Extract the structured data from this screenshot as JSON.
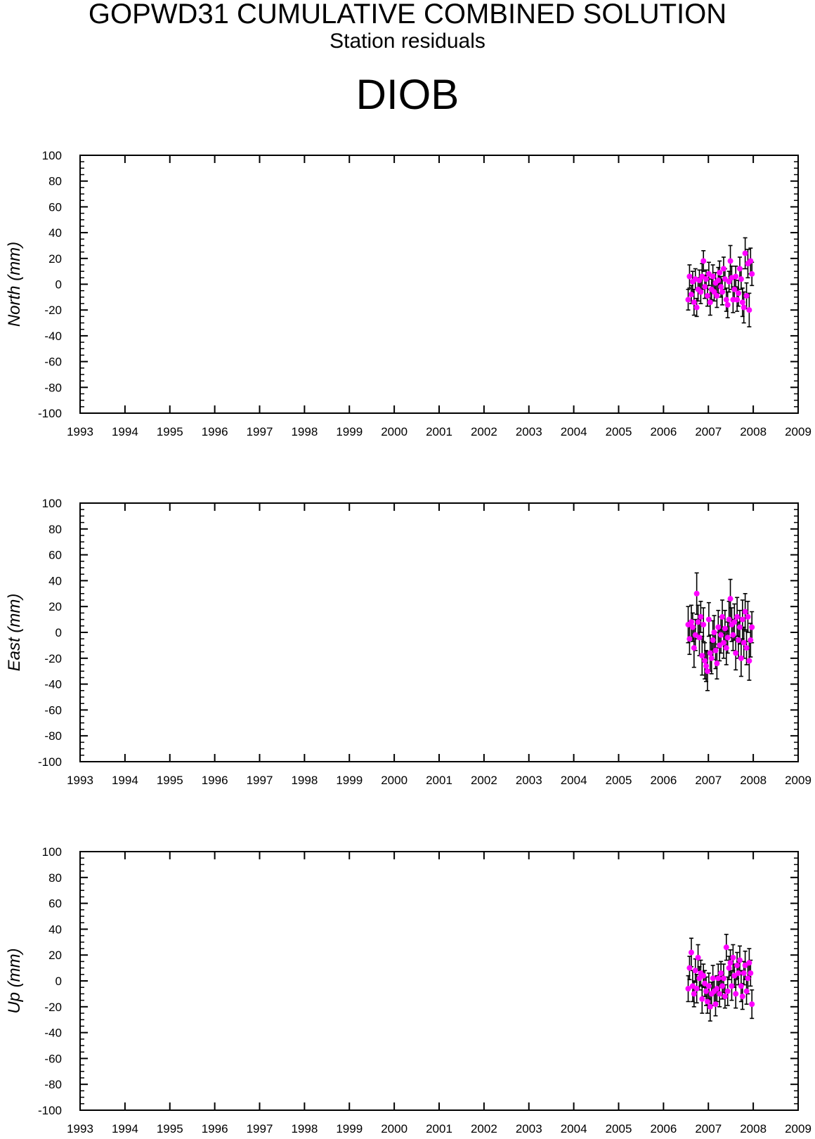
{
  "header": {
    "title": "GOPWD31 CUMULATIVE COMBINED SOLUTION",
    "subtitle": "Station residuals",
    "station": "DIOB"
  },
  "colors": {
    "marker": "#ff00ff",
    "errorbar": "#000000",
    "axis": "#000000"
  },
  "chart_data": [
    {
      "type": "scatter",
      "ylabel": "North (mm)",
      "xlim": [
        1993,
        2009
      ],
      "ylim": [
        -100,
        100
      ],
      "x_ticks": [
        "1993",
        "1994",
        "1995",
        "1996",
        "1997",
        "1998",
        "1999",
        "2000",
        "2001",
        "2002",
        "2003",
        "2004",
        "2005",
        "2006",
        "2007",
        "2008",
        "2009"
      ],
      "y_ticks": [
        "-100",
        "-80",
        "-60",
        "-40",
        "-20",
        "0",
        "20",
        "40",
        "60",
        "80",
        "100"
      ],
      "grid": false,
      "x": [
        2006.55,
        2006.58,
        2006.62,
        2006.65,
        2006.68,
        2006.71,
        2006.74,
        2006.77,
        2006.8,
        2006.83,
        2006.86,
        2006.89,
        2006.92,
        2006.95,
        2006.98,
        2007.01,
        2007.04,
        2007.07,
        2007.1,
        2007.13,
        2007.16,
        2007.19,
        2007.22,
        2007.25,
        2007.28,
        2007.31,
        2007.34,
        2007.37,
        2007.4,
        2007.43,
        2007.46,
        2007.49,
        2007.52,
        2007.55,
        2007.58,
        2007.61,
        2007.64,
        2007.67,
        2007.7,
        2007.73,
        2007.76,
        2007.79,
        2007.82,
        2007.85,
        2007.88,
        2007.91,
        2007.94,
        2007.97
      ],
      "y": [
        -12,
        6,
        -8,
        2,
        -14,
        4,
        -18,
        -4,
        3,
        -6,
        6,
        18,
        -2,
        4,
        -9,
        8,
        -14,
        -4,
        6,
        -6,
        1,
        -9,
        3,
        9,
        -2,
        -6,
        12,
        4,
        -12,
        -16,
        2,
        18,
        5,
        -12,
        -4,
        6,
        -12,
        -7,
        12,
        4,
        -14,
        -18,
        24,
        -9,
        16,
        -20,
        18,
        8
      ],
      "err": [
        8,
        9,
        7,
        8,
        10,
        8,
        7,
        9,
        8,
        9,
        10,
        8,
        9,
        7,
        8,
        9,
        10,
        8,
        9,
        7,
        8,
        9,
        10,
        9,
        8,
        10,
        9,
        8,
        9,
        10,
        8,
        12,
        9,
        10,
        9,
        8,
        9,
        10,
        9,
        8,
        11,
        12,
        12,
        10,
        11,
        13,
        10,
        9
      ]
    },
    {
      "type": "scatter",
      "ylabel": "East (mm)",
      "xlim": [
        1993,
        2009
      ],
      "ylim": [
        -100,
        100
      ],
      "x_ticks": [
        "1993",
        "1994",
        "1995",
        "1996",
        "1997",
        "1998",
        "1999",
        "2000",
        "2001",
        "2002",
        "2003",
        "2004",
        "2005",
        "2006",
        "2007",
        "2008",
        "2009"
      ],
      "y_ticks": [
        "-100",
        "-80",
        "-60",
        "-40",
        "-20",
        "0",
        "20",
        "40",
        "60",
        "80",
        "100"
      ],
      "grid": false,
      "x": [
        2006.55,
        2006.58,
        2006.62,
        2006.65,
        2006.68,
        2006.71,
        2006.74,
        2006.77,
        2006.8,
        2006.83,
        2006.86,
        2006.89,
        2006.92,
        2006.95,
        2006.98,
        2007.01,
        2007.04,
        2007.07,
        2007.1,
        2007.13,
        2007.16,
        2007.19,
        2007.22,
        2007.25,
        2007.28,
        2007.31,
        2007.34,
        2007.37,
        2007.4,
        2007.43,
        2007.46,
        2007.49,
        2007.52,
        2007.55,
        2007.58,
        2007.61,
        2007.64,
        2007.67,
        2007.7,
        2007.73,
        2007.76,
        2007.79,
        2007.82,
        2007.85,
        2007.88,
        2007.91,
        2007.94,
        2007.97
      ],
      "y": [
        6,
        -5,
        8,
        4,
        -12,
        -2,
        30,
        8,
        -4,
        12,
        -18,
        6,
        -22,
        -26,
        -30,
        10,
        -16,
        -20,
        -6,
        0,
        -14,
        -24,
        4,
        -10,
        -2,
        12,
        -8,
        3,
        -12,
        -4,
        10,
        26,
        6,
        -2,
        8,
        -16,
        12,
        -6,
        4,
        -20,
        10,
        -8,
        16,
        -12,
        12,
        -22,
        -6,
        4
      ],
      "err": [
        14,
        12,
        13,
        11,
        15,
        12,
        16,
        13,
        14,
        12,
        15,
        13,
        14,
        12,
        15,
        13,
        14,
        12,
        15,
        13,
        14,
        12,
        13,
        12,
        14,
        13,
        12,
        14,
        13,
        12,
        14,
        15,
        13,
        12,
        14,
        13,
        15,
        14,
        13,
        14,
        15,
        12,
        14,
        13,
        12,
        15,
        13,
        12
      ]
    },
    {
      "type": "scatter",
      "ylabel": "Up (mm)",
      "xlim": [
        1993,
        2009
      ],
      "ylim": [
        -100,
        100
      ],
      "x_ticks": [
        "1993",
        "1994",
        "1995",
        "1996",
        "1997",
        "1998",
        "1999",
        "2000",
        "2001",
        "2002",
        "2003",
        "2004",
        "2005",
        "2006",
        "2007",
        "2008",
        "2009"
      ],
      "y_ticks": [
        "-100",
        "-80",
        "-60",
        "-40",
        "-20",
        "0",
        "20",
        "40",
        "60",
        "80",
        "100"
      ],
      "grid": false,
      "x": [
        2006.55,
        2006.58,
        2006.62,
        2006.65,
        2006.68,
        2006.71,
        2006.74,
        2006.77,
        2006.8,
        2006.83,
        2006.86,
        2006.89,
        2006.92,
        2006.95,
        2006.98,
        2007.01,
        2007.04,
        2007.07,
        2007.1,
        2007.13,
        2007.16,
        2007.19,
        2007.22,
        2007.25,
        2007.28,
        2007.31,
        2007.34,
        2007.37,
        2007.4,
        2007.43,
        2007.46,
        2007.49,
        2007.52,
        2007.55,
        2007.58,
        2007.61,
        2007.64,
        2007.67,
        2007.7,
        2007.73,
        2007.76,
        2007.79,
        2007.82,
        2007.85,
        2007.88,
        2007.91,
        2007.94,
        2007.97
      ],
      "y": [
        -6,
        10,
        22,
        -4,
        -10,
        8,
        -6,
        18,
        2,
        6,
        -14,
        4,
        -2,
        -8,
        -16,
        -4,
        -20,
        -10,
        2,
        -8,
        -18,
        -6,
        2,
        -10,
        6,
        -4,
        2,
        -12,
        26,
        -8,
        10,
        14,
        -4,
        18,
        4,
        -10,
        12,
        6,
        16,
        -4,
        -12,
        6,
        12,
        -8,
        2,
        14,
        6,
        -18
      ],
      "err": [
        10,
        9,
        11,
        12,
        10,
        9,
        11,
        10,
        9,
        10,
        11,
        9,
        10,
        11,
        9,
        10,
        11,
        9,
        10,
        11,
        9,
        10,
        11,
        10,
        9,
        10,
        11,
        9,
        10,
        11,
        9,
        10,
        11,
        10,
        9,
        11,
        10,
        9,
        11,
        12,
        10,
        9,
        11,
        10,
        12,
        11,
        10,
        11
      ]
    }
  ]
}
